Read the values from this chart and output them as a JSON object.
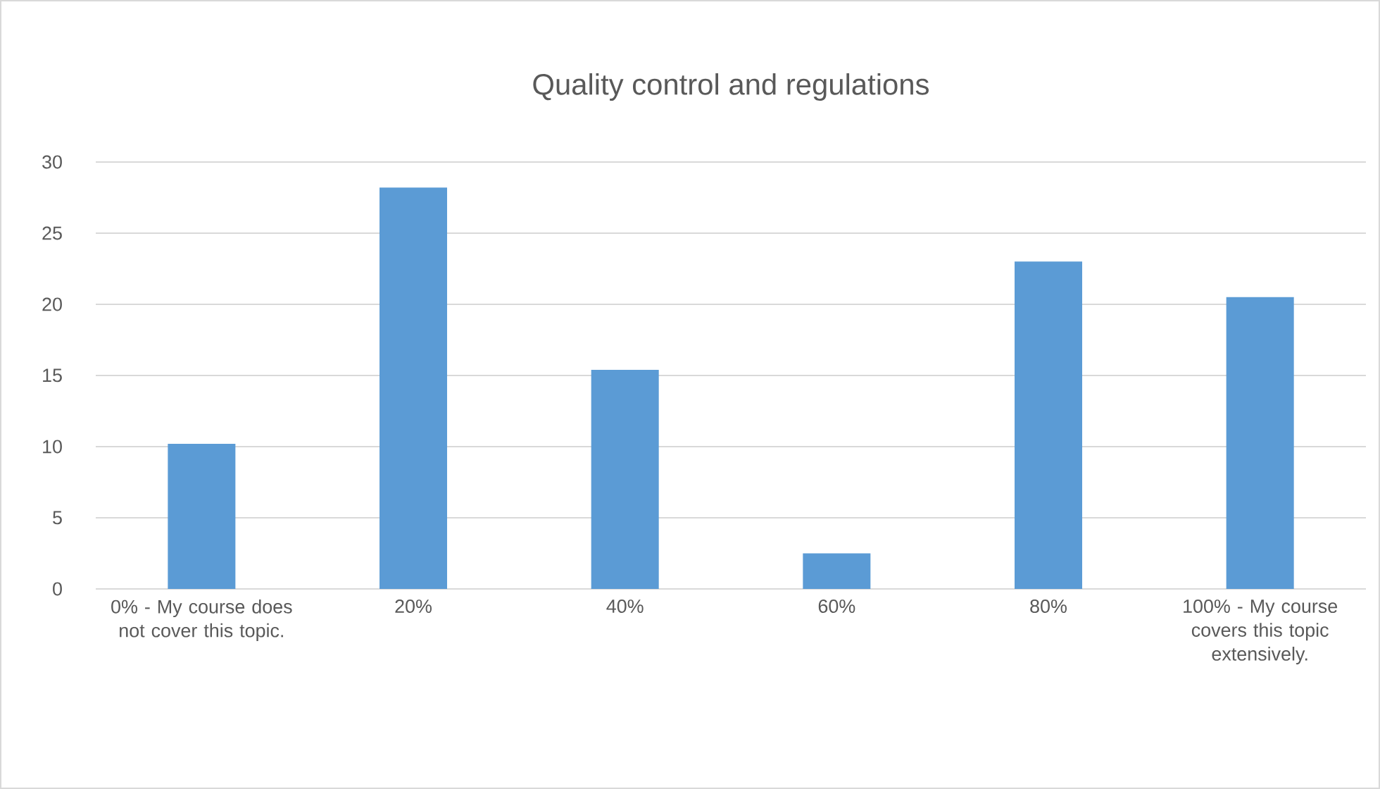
{
  "chart_data": {
    "type": "bar",
    "title": "Quality control and regulations",
    "categories": [
      "0% - My course does not cover this topic.",
      "20%",
      "40%",
      "60%",
      "80%",
      "100% - My course covers this topic extensively."
    ],
    "values": [
      10.2,
      28.2,
      15.4,
      2.5,
      23.0,
      20.5
    ],
    "color": "#5b9bd5",
    "ylim": [
      0,
      30
    ],
    "yticks": [
      0,
      5,
      10,
      15,
      20,
      25,
      30
    ],
    "grid": "y"
  }
}
